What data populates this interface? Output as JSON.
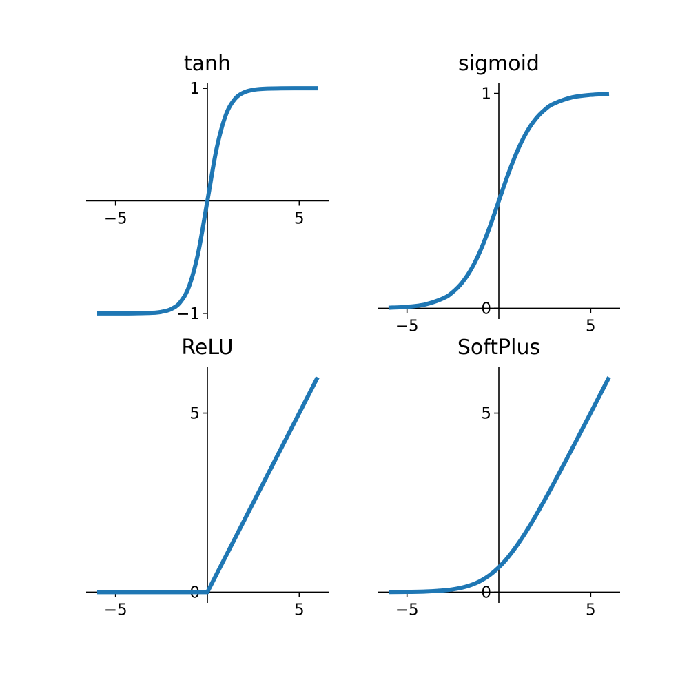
{
  "figure": {
    "line_color": "#1f77b4",
    "spine_color": "#000000"
  },
  "chart_data": [
    {
      "type": "line",
      "function": "tanh",
      "title": "tanh",
      "xlim": [
        -6.6,
        6.6
      ],
      "ylim": [
        -1.05,
        1.05
      ],
      "xticks": [
        -5,
        5
      ],
      "xtick_labels": [
        "−5",
        "5"
      ],
      "yticks": [
        -1,
        1
      ],
      "ytick_labels": [
        "−1",
        "1"
      ],
      "x": [
        -6,
        -5,
        -4,
        -3,
        -2.5,
        -2,
        -1.5,
        -1,
        -0.5,
        0,
        0.5,
        1,
        1.5,
        2,
        2.5,
        3,
        4,
        5,
        6
      ],
      "y": [
        -1.0,
        -0.9999,
        -0.9993,
        -0.9951,
        -0.9866,
        -0.964,
        -0.9051,
        -0.7616,
        -0.4621,
        0.0,
        0.4621,
        0.7616,
        0.9051,
        0.964,
        0.9866,
        0.9951,
        0.9993,
        0.9999,
        1.0
      ]
    },
    {
      "type": "line",
      "function": "sigmoid",
      "title": "sigmoid",
      "xlim": [
        -6.6,
        6.6
      ],
      "ylim": [
        -0.05,
        1.05
      ],
      "xticks": [
        -5,
        5
      ],
      "xtick_labels": [
        "−5",
        "5"
      ],
      "yticks": [
        0,
        1
      ],
      "ytick_labels": [
        "0",
        "1"
      ],
      "x": [
        -6,
        -5,
        -4,
        -3,
        -2.5,
        -2,
        -1.5,
        -1,
        -0.5,
        0,
        0.5,
        1,
        1.5,
        2,
        2.5,
        3,
        4,
        5,
        6
      ],
      "y": [
        0.0025,
        0.0067,
        0.018,
        0.0474,
        0.0759,
        0.1192,
        0.1824,
        0.2689,
        0.3775,
        0.5,
        0.6225,
        0.7311,
        0.8176,
        0.8808,
        0.9241,
        0.9526,
        0.982,
        0.9933,
        0.9975
      ]
    },
    {
      "type": "line",
      "function": "ReLU",
      "title": "ReLU",
      "xlim": [
        -6.6,
        6.6
      ],
      "ylim": [
        -0.3,
        6.3
      ],
      "xticks": [
        -5,
        5
      ],
      "xtick_labels": [
        "−5",
        "5"
      ],
      "yticks": [
        0,
        5
      ],
      "ytick_labels": [
        "0",
        "5"
      ],
      "x": [
        -6,
        -3,
        0,
        3,
        6
      ],
      "y": [
        0,
        0,
        0,
        3,
        6
      ]
    },
    {
      "type": "line",
      "function": "SoftPlus",
      "title": "SoftPlus",
      "xlim": [
        -6.6,
        6.6
      ],
      "ylim": [
        -0.3,
        6.3
      ],
      "xticks": [
        -5,
        5
      ],
      "xtick_labels": [
        "−5",
        "5"
      ],
      "yticks": [
        0,
        5
      ],
      "ytick_labels": [
        "0",
        "5"
      ],
      "x": [
        -6,
        -5,
        -4,
        -3,
        -2.5,
        -2,
        -1.5,
        -1,
        -0.5,
        0,
        0.5,
        1,
        1.5,
        2,
        2.5,
        3,
        4,
        5,
        6
      ],
      "y": [
        0.0025,
        0.0067,
        0.0181,
        0.0486,
        0.0789,
        0.1269,
        0.2014,
        0.3133,
        0.4741,
        0.6931,
        0.9741,
        1.3133,
        1.7014,
        2.1269,
        2.5789,
        3.0486,
        4.0181,
        5.0067,
        6.0025
      ]
    }
  ]
}
